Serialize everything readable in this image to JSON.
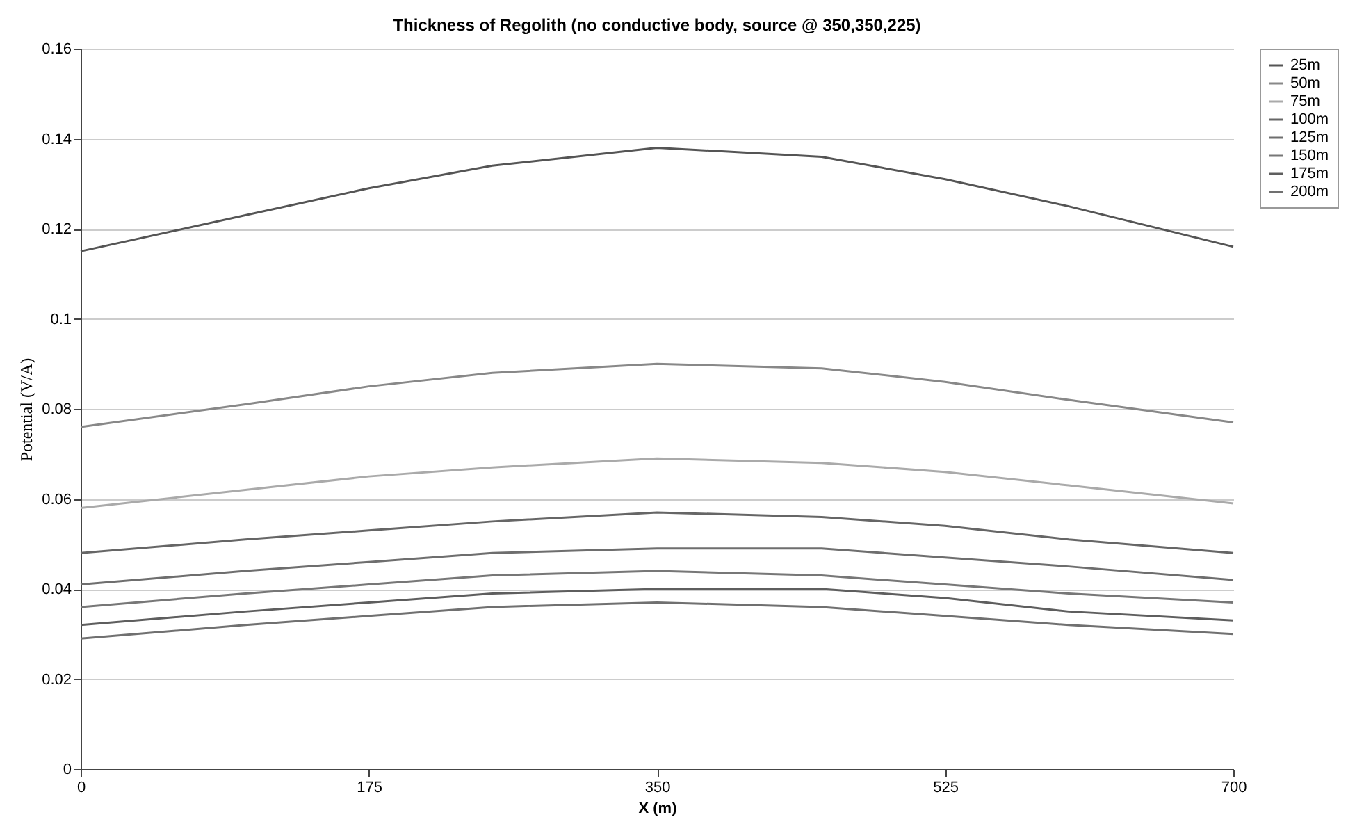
{
  "chart_data": {
    "type": "line",
    "title": "Thickness of Regolith (no conductive body, source @ 350,350,225)",
    "xlabel": "X (m)",
    "ylabel": "Potential (V/A)",
    "x": [
      0,
      100,
      175,
      250,
      350,
      450,
      525,
      600,
      700
    ],
    "series": [
      {
        "name": "25m",
        "color": "#555555",
        "values": [
          0.115,
          0.123,
          0.129,
          0.134,
          0.138,
          0.136,
          0.131,
          0.125,
          0.116
        ]
      },
      {
        "name": "50m",
        "color": "#888888",
        "values": [
          0.076,
          0.081,
          0.085,
          0.088,
          0.09,
          0.089,
          0.086,
          0.082,
          0.077
        ]
      },
      {
        "name": "75m",
        "color": "#aaaaaa",
        "values": [
          0.058,
          0.062,
          0.065,
          0.067,
          0.069,
          0.068,
          0.066,
          0.063,
          0.059
        ]
      },
      {
        "name": "100m",
        "color": "#666666",
        "values": [
          0.048,
          0.051,
          0.053,
          0.055,
          0.057,
          0.056,
          0.054,
          0.051,
          0.048
        ]
      },
      {
        "name": "125m",
        "color": "#6e6e6e",
        "values": [
          0.041,
          0.044,
          0.046,
          0.048,
          0.049,
          0.049,
          0.047,
          0.045,
          0.042
        ]
      },
      {
        "name": "150m",
        "color": "#777777",
        "values": [
          0.036,
          0.039,
          0.041,
          0.043,
          0.044,
          0.043,
          0.041,
          0.039,
          0.037
        ]
      },
      {
        "name": "175m",
        "color": "#5e5e5e",
        "values": [
          0.032,
          0.035,
          0.037,
          0.039,
          0.04,
          0.04,
          0.038,
          0.035,
          0.033
        ]
      },
      {
        "name": "200m",
        "color": "#707070",
        "values": [
          0.029,
          0.032,
          0.034,
          0.036,
          0.037,
          0.036,
          0.034,
          0.032,
          0.03
        ]
      }
    ],
    "xlim": [
      0,
      700
    ],
    "xticks": [
      0,
      175,
      350,
      525,
      700
    ],
    "ylim": [
      0,
      0.16
    ],
    "yticks": [
      0,
      0.02,
      0.04,
      0.06,
      0.08,
      0.1,
      0.12,
      0.14,
      0.16
    ],
    "grid": "y",
    "legend": "right",
    "marker": "none",
    "line_style": "solid"
  }
}
